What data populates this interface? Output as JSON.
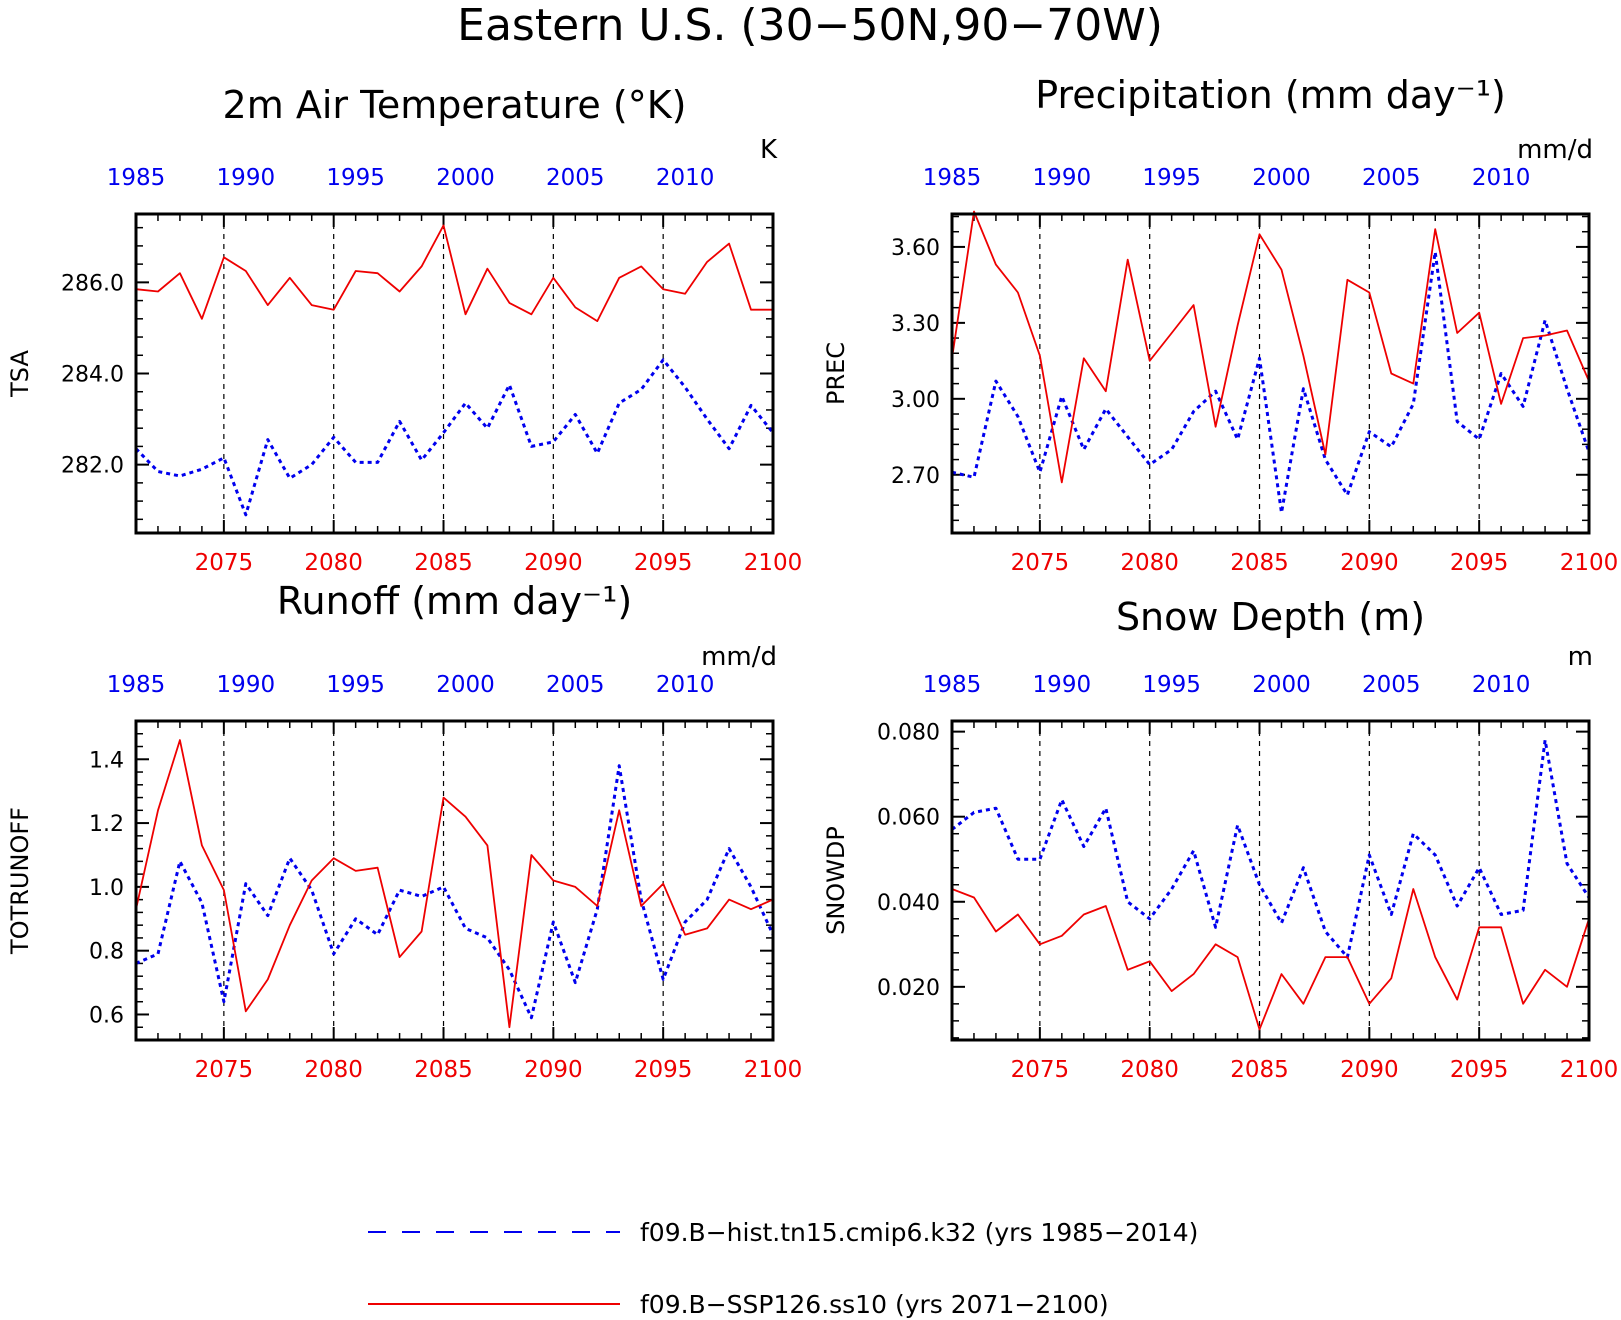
{
  "title": "Eastern U.S. (30−50N,90−70W)",
  "colors": {
    "hist": "#0000ee",
    "ssp": "#ee0000",
    "axis": "#000000"
  },
  "legend": {
    "hist_label": "f09.B−hist.tn15.cmip6.k32 (yrs 1985−2014)",
    "ssp_label": "f09.B−SSP126.ss10 (yrs 2071−2100)"
  },
  "chart_data": [
    {
      "type": "line",
      "title": "2m Air Temperature (°K)",
      "units": "K",
      "ylabel": "TSA",
      "ylim": [
        280.5,
        287.5
      ],
      "yticks": [
        282.0,
        284.0,
        286.0
      ],
      "ytick_labels": [
        "282.0",
        "284.0",
        "286.0"
      ],
      "ytick_minor": 0.4,
      "x_bottom": [
        2071,
        2072,
        2073,
        2074,
        2075,
        2076,
        2077,
        2078,
        2079,
        2080,
        2081,
        2082,
        2083,
        2084,
        2085,
        2086,
        2087,
        2088,
        2089,
        2090,
        2091,
        2092,
        2093,
        2094,
        2095,
        2096,
        2097,
        2098,
        2099,
        2100
      ],
      "x_top": [
        1985,
        1986,
        1987,
        1988,
        1989,
        1990,
        1991,
        1992,
        1993,
        1994,
        1995,
        1996,
        1997,
        1998,
        1999,
        2000,
        2001,
        2002,
        2003,
        2004,
        2005,
        2006,
        2007,
        2008,
        2009,
        2010,
        2011,
        2012,
        2013,
        2014
      ],
      "xticks_bottom": [
        "2075",
        "2080",
        "2085",
        "2090",
        "2095",
        "2100"
      ],
      "xticks_top": [
        "1985",
        "1990",
        "1995",
        "2000",
        "2005",
        "2010"
      ],
      "series": [
        {
          "name": "f09.B−hist.tn15.cmip6.k32",
          "style": "hist",
          "values": [
            282.35,
            281.85,
            281.75,
            281.9,
            282.15,
            280.9,
            282.55,
            281.7,
            282.0,
            282.6,
            282.05,
            282.05,
            282.95,
            282.1,
            282.7,
            283.35,
            282.8,
            283.75,
            282.4,
            282.5,
            283.1,
            282.25,
            283.35,
            283.65,
            284.3,
            283.7,
            283.0,
            282.35,
            283.3,
            282.7
          ]
        },
        {
          "name": "f09.B−SSP126.ss10",
          "style": "ssp",
          "values": [
            285.85,
            285.8,
            286.2,
            285.2,
            286.55,
            286.25,
            285.5,
            286.1,
            285.5,
            285.4,
            286.25,
            286.2,
            285.8,
            286.35,
            287.25,
            285.3,
            286.3,
            285.55,
            285.3,
            286.1,
            285.45,
            285.15,
            286.1,
            286.35,
            285.85,
            285.75,
            286.45,
            286.85,
            285.4,
            285.4
          ]
        }
      ]
    },
    {
      "type": "line",
      "title": "Precipitation (mm day⁻¹)",
      "units": "mm/d",
      "ylabel": "PREC",
      "ylim": [
        2.47,
        3.73
      ],
      "yticks": [
        2.7,
        3.0,
        3.3,
        3.6
      ],
      "ytick_labels": [
        "2.70",
        "3.00",
        "3.30",
        "3.60"
      ],
      "ytick_minor": 0.06,
      "x_bottom": [
        2071,
        2072,
        2073,
        2074,
        2075,
        2076,
        2077,
        2078,
        2079,
        2080,
        2081,
        2082,
        2083,
        2084,
        2085,
        2086,
        2087,
        2088,
        2089,
        2090,
        2091,
        2092,
        2093,
        2094,
        2095,
        2096,
        2097,
        2098,
        2099,
        2100
      ],
      "x_top": [
        1985,
        1986,
        1987,
        1988,
        1989,
        1990,
        1991,
        1992,
        1993,
        1994,
        1995,
        1996,
        1997,
        1998,
        1999,
        2000,
        2001,
        2002,
        2003,
        2004,
        2005,
        2006,
        2007,
        2008,
        2009,
        2010,
        2011,
        2012,
        2013,
        2014
      ],
      "xticks_bottom": [
        "2075",
        "2080",
        "2085",
        "2090",
        "2095",
        "2100"
      ],
      "xticks_top": [
        "1985",
        "1990",
        "1995",
        "2000",
        "2005",
        "2010"
      ],
      "series": [
        {
          "name": "f09.B−hist.tn15.cmip6.k32",
          "style": "hist",
          "values": [
            2.71,
            2.69,
            3.07,
            2.93,
            2.71,
            3.01,
            2.8,
            2.96,
            2.85,
            2.74,
            2.8,
            2.95,
            3.03,
            2.84,
            3.16,
            2.55,
            3.04,
            2.76,
            2.62,
            2.87,
            2.81,
            2.98,
            3.58,
            2.91,
            2.84,
            3.1,
            2.97,
            3.31,
            3.04,
            2.79
          ]
        },
        {
          "name": "f09.B−SSP126.ss10",
          "style": "ssp",
          "values": [
            3.16,
            3.74,
            3.53,
            3.42,
            3.17,
            2.67,
            3.16,
            3.03,
            3.55,
            3.15,
            3.26,
            3.37,
            2.89,
            3.29,
            3.65,
            3.51,
            3.17,
            2.78,
            3.47,
            3.42,
            3.1,
            3.06,
            3.67,
            3.26,
            3.34,
            2.98,
            3.24,
            3.25,
            3.27,
            3.07
          ]
        }
      ]
    },
    {
      "type": "line",
      "title": "Runoff (mm day⁻¹)",
      "units": "mm/d",
      "ylabel": "TOTRUNOFF",
      "ylim": [
        0.52,
        1.52
      ],
      "yticks": [
        0.6,
        0.8,
        1.0,
        1.2,
        1.4
      ],
      "ytick_labels": [
        "0.6",
        "0.8",
        "1.0",
        "1.2",
        "1.4"
      ],
      "ytick_minor": 0.04,
      "x_bottom": [
        2071,
        2072,
        2073,
        2074,
        2075,
        2076,
        2077,
        2078,
        2079,
        2080,
        2081,
        2082,
        2083,
        2084,
        2085,
        2086,
        2087,
        2088,
        2089,
        2090,
        2091,
        2092,
        2093,
        2094,
        2095,
        2096,
        2097,
        2098,
        2099,
        2100
      ],
      "x_top": [
        1985,
        1986,
        1987,
        1988,
        1989,
        1990,
        1991,
        1992,
        1993,
        1994,
        1995,
        1996,
        1997,
        1998,
        1999,
        2000,
        2001,
        2002,
        2003,
        2004,
        2005,
        2006,
        2007,
        2008,
        2009,
        2010,
        2011,
        2012,
        2013,
        2014
      ],
      "xticks_bottom": [
        "2075",
        "2080",
        "2085",
        "2090",
        "2095",
        "2100"
      ],
      "xticks_top": [
        "1985",
        "1990",
        "1995",
        "2000",
        "2005",
        "2010"
      ],
      "series": [
        {
          "name": "f09.B−hist.tn15.cmip6.k32",
          "style": "hist",
          "values": [
            0.76,
            0.79,
            1.08,
            0.95,
            0.64,
            1.01,
            0.91,
            1.09,
            0.99,
            0.79,
            0.9,
            0.85,
            0.99,
            0.97,
            1.0,
            0.87,
            0.84,
            0.74,
            0.59,
            0.89,
            0.7,
            0.93,
            1.38,
            0.96,
            0.71,
            0.89,
            0.96,
            1.12,
            1.0,
            0.85
          ]
        },
        {
          "name": "f09.B−SSP126.ss10",
          "style": "ssp",
          "values": [
            0.93,
            1.24,
            1.46,
            1.13,
            0.99,
            0.61,
            0.71,
            0.88,
            1.02,
            1.09,
            1.05,
            1.06,
            0.78,
            0.86,
            1.28,
            1.22,
            1.13,
            0.56,
            1.1,
            1.02,
            1.0,
            0.94,
            1.24,
            0.94,
            1.01,
            0.85,
            0.87,
            0.96,
            0.93,
            0.96
          ]
        }
      ]
    },
    {
      "type": "line",
      "title": "Snow Depth (m)",
      "units": "m",
      "ylabel": "SNOWDP",
      "ylim": [
        0.0075,
        0.0825
      ],
      "yticks": [
        0.02,
        0.04,
        0.06,
        0.08
      ],
      "ytick_labels": [
        "0.020",
        "0.040",
        "0.060",
        "0.080"
      ],
      "ytick_minor": 0.004,
      "x_bottom": [
        2071,
        2072,
        2073,
        2074,
        2075,
        2076,
        2077,
        2078,
        2079,
        2080,
        2081,
        2082,
        2083,
        2084,
        2085,
        2086,
        2087,
        2088,
        2089,
        2090,
        2091,
        2092,
        2093,
        2094,
        2095,
        2096,
        2097,
        2098,
        2099,
        2100
      ],
      "x_top": [
        1985,
        1986,
        1987,
        1988,
        1989,
        1990,
        1991,
        1992,
        1993,
        1994,
        1995,
        1996,
        1997,
        1998,
        1999,
        2000,
        2001,
        2002,
        2003,
        2004,
        2005,
        2006,
        2007,
        2008,
        2009,
        2010,
        2011,
        2012,
        2013,
        2014
      ],
      "xticks_bottom": [
        "2075",
        "2080",
        "2085",
        "2090",
        "2095",
        "2100"
      ],
      "xticks_top": [
        "1985",
        "1990",
        "1995",
        "2000",
        "2005",
        "2010"
      ],
      "series": [
        {
          "name": "f09.B−hist.tn15.cmip6.k32",
          "style": "hist",
          "values": [
            0.057,
            0.061,
            0.062,
            0.05,
            0.05,
            0.064,
            0.053,
            0.062,
            0.04,
            0.036,
            0.043,
            0.052,
            0.034,
            0.058,
            0.044,
            0.035,
            0.048,
            0.033,
            0.027,
            0.051,
            0.037,
            0.056,
            0.051,
            0.039,
            0.048,
            0.037,
            0.038,
            0.078,
            0.049,
            0.041
          ]
        },
        {
          "name": "f09.B−SSP126.ss10",
          "style": "ssp",
          "values": [
            0.043,
            0.041,
            0.033,
            0.037,
            0.03,
            0.032,
            0.037,
            0.039,
            0.024,
            0.026,
            0.019,
            0.023,
            0.03,
            0.027,
            0.01,
            0.023,
            0.016,
            0.027,
            0.027,
            0.016,
            0.022,
            0.043,
            0.027,
            0.017,
            0.034,
            0.034,
            0.016,
            0.024,
            0.02,
            0.036
          ]
        }
      ]
    }
  ]
}
